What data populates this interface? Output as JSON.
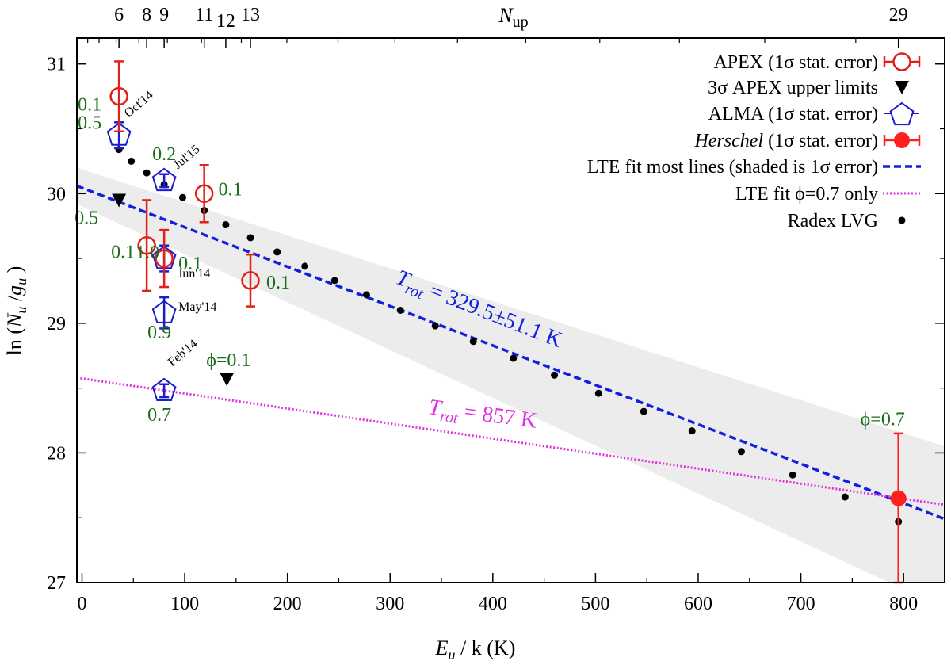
{
  "chart_data": {
    "type": "scatter",
    "xlabel_main": "E",
    "xlabel_sub": "u",
    "xlabel_rest": " / k (K)",
    "ylabel": "ln (N_u / g_u)",
    "ylabel_parts": {
      "prefix": "ln (",
      "n": "N",
      "nsub": "u",
      "slash": " /",
      "g": "g",
      "gsub": "u",
      "suffix": " )"
    },
    "top_axis_label": {
      "main": "N",
      "sub": "up"
    },
    "xlim": [
      -5,
      840
    ],
    "ylim": [
      27,
      31.2
    ],
    "x_ticks": [
      0,
      100,
      200,
      300,
      400,
      500,
      600,
      700,
      800
    ],
    "y_ticks": [
      27,
      28,
      29,
      30,
      31
    ],
    "top_ticks": [
      {
        "label": "6",
        "x": 36
      },
      {
        "label": "8",
        "x": 63
      },
      {
        "label": "9",
        "x": 80
      },
      {
        "label": "11",
        "x": 119
      },
      {
        "label": "12",
        "x": 140
      },
      {
        "label": "13",
        "x": 164
      },
      {
        "label": "29",
        "x": 795
      }
    ],
    "series": [
      {
        "name": "APEX (1σ stat. error)",
        "marker": "open-circle",
        "color": "#e0201b",
        "points": [
          {
            "x": 36,
            "y": 30.75,
            "err": 0.27,
            "label": "0.1"
          },
          {
            "x": 63,
            "y": 29.6,
            "err": 0.35,
            "label": "0.1"
          },
          {
            "x": 80,
            "y": 29.5,
            "err": 0.22,
            "label": "0.1"
          },
          {
            "x": 119,
            "y": 30.0,
            "err": 0.22,
            "label": "0.1"
          },
          {
            "x": 164,
            "y": 29.33,
            "err": 0.2,
            "label": "0.1"
          }
        ]
      },
      {
        "name": "3σ APEX upper limits",
        "marker": "down-triangle",
        "color": "#000000",
        "points": [
          {
            "x": 36,
            "y": 29.95,
            "label": "0.5"
          },
          {
            "x": 141,
            "y": 28.57,
            "label": "ϕ=0.1"
          }
        ]
      },
      {
        "name": "ALMA (1σ stat. error)",
        "marker": "open-pentagon",
        "color": "#1c1ccc",
        "points": [
          {
            "x": 36,
            "y": 30.45,
            "err": 0.1,
            "label": "0.5",
            "date": "Oct'14"
          },
          {
            "x": 80,
            "y": 30.1,
            "err": 0.05,
            "label": "0.2",
            "date": "Jul'15"
          },
          {
            "x": 80,
            "y": 29.5,
            "err": 0.1,
            "label": "1.0",
            "date": "Jun'14"
          },
          {
            "x": 80,
            "y": 29.08,
            "err": 0.12,
            "label": "0.9",
            "date": "May'14"
          },
          {
            "x": 80,
            "y": 28.48,
            "err": 0.05,
            "label": "0.7",
            "date": "Feb'14"
          }
        ]
      },
      {
        "name": "Herschel (1σ stat. error)",
        "name_italic": "Herschel",
        "name_rest": " (1σ stat. error)",
        "marker": "filled-circle",
        "color": "#ff2020",
        "points": [
          {
            "x": 795,
            "y": 27.65,
            "err_plus": 0.5,
            "err_minus": 0.7,
            "label": "ϕ=0.7"
          }
        ]
      },
      {
        "name": "LTE fit most lines (shaded is 1σ error)",
        "marker": "dashed-line",
        "color": "#1020dd",
        "line": {
          "x0": -5,
          "y0": 30.06,
          "x1": 840,
          "y1": 27.49
        },
        "band_upper": {
          "x0": -5,
          "y0": 30.2,
          "x1": 840,
          "y1": 28.05
        },
        "band_lower": {
          "x0": -5,
          "y0": 29.92,
          "x1": 840,
          "y1": 26.8
        },
        "annotation": {
          "T": "T",
          "sub": "rot",
          "value": " = 329.5±51.1 K"
        }
      },
      {
        "name": "LTE fit ϕ=0.7 only",
        "marker": "dotted-line",
        "color": "#e030e0",
        "line": {
          "x0": -5,
          "y0": 28.58,
          "x1": 840,
          "y1": 27.6
        },
        "annotation": {
          "T": "T",
          "sub": "rot",
          "value": " = 857 K"
        }
      },
      {
        "name": "Radex LVG",
        "marker": "small-dot",
        "color": "#000000",
        "points": [
          {
            "x": 36,
            "y": 30.34
          },
          {
            "x": 48,
            "y": 30.25
          },
          {
            "x": 63,
            "y": 30.16
          },
          {
            "x": 80,
            "y": 30.07
          },
          {
            "x": 98,
            "y": 29.97
          },
          {
            "x": 119,
            "y": 29.87
          },
          {
            "x": 140,
            "y": 29.76
          },
          {
            "x": 164,
            "y": 29.66
          },
          {
            "x": 190,
            "y": 29.55
          },
          {
            "x": 217,
            "y": 29.44
          },
          {
            "x": 246,
            "y": 29.33
          },
          {
            "x": 277,
            "y": 29.22
          },
          {
            "x": 310,
            "y": 29.1
          },
          {
            "x": 344,
            "y": 28.98
          },
          {
            "x": 381,
            "y": 28.86
          },
          {
            "x": 420,
            "y": 28.73
          },
          {
            "x": 460,
            "y": 28.6
          },
          {
            "x": 503,
            "y": 28.46
          },
          {
            "x": 547,
            "y": 28.32
          },
          {
            "x": 594,
            "y": 28.17
          },
          {
            "x": 642,
            "y": 28.01
          },
          {
            "x": 692,
            "y": 27.83
          },
          {
            "x": 743,
            "y": 27.66
          },
          {
            "x": 795,
            "y": 27.47
          }
        ]
      }
    ]
  }
}
